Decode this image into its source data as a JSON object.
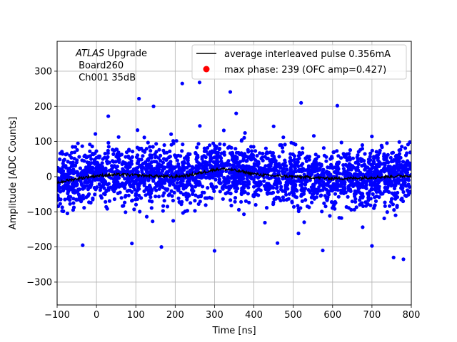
{
  "chart_data": {
    "type": "scatter",
    "xlabel": "Time [ns]",
    "ylabel": "Amplitude [ADC Counts]",
    "xlim": [
      -100,
      800
    ],
    "ylim": [
      -365,
      385
    ],
    "xticks": [
      -100,
      0,
      100,
      200,
      300,
      400,
      500,
      600,
      700,
      800
    ],
    "yticks": [
      -300,
      -200,
      -100,
      0,
      100,
      200,
      300
    ],
    "xtick_labels": [
      "−100",
      "0",
      "100",
      "200",
      "300",
      "400",
      "500",
      "600",
      "700",
      "800"
    ],
    "ytick_labels": [
      "−300",
      "−200",
      "−100",
      "0",
      "100",
      "200",
      "300"
    ],
    "grid": true,
    "legend_position": "top-right",
    "annotation": {
      "line1_italic": "ATLAS",
      "line1_rest": " Upgrade",
      "line2": " Board260",
      "line3": " Ch001 35dB"
    },
    "series": [
      {
        "name": "average interleaved pulse 0.356mA",
        "kind": "line",
        "color": "#000000",
        "x": [
          -100,
          -80,
          -60,
          -40,
          -20,
          0,
          20,
          40,
          60,
          80,
          100,
          120,
          140,
          160,
          180,
          200,
          220,
          240,
          260,
          280,
          300,
          320,
          340,
          360,
          380,
          400,
          420,
          440,
          460,
          480,
          500,
          520,
          540,
          560,
          580,
          600,
          620,
          640,
          660,
          680,
          700,
          720,
          740,
          760,
          780,
          800
        ],
        "y": [
          -18,
          -12,
          -8,
          -4,
          0,
          2,
          4,
          5,
          6,
          5,
          4,
          3,
          2,
          1,
          0,
          0,
          2,
          5,
          10,
          15,
          20,
          22,
          20,
          16,
          12,
          8,
          5,
          3,
          2,
          1,
          0,
          -1,
          -2,
          -3,
          -4,
          -5,
          -5,
          -5,
          -4,
          -3,
          -2,
          -1,
          0,
          1,
          2,
          3
        ]
      },
      {
        "name": "max phase: 239 (OFC amp=0.427)",
        "kind": "scatter",
        "color": "#ff0000"
      }
    ],
    "noise_points": {
      "color": "#0000ff",
      "x_range": [
        -100,
        800
      ],
      "core_sigma": 40,
      "outliers": [
        {
          "x": 108,
          "y": 222
        },
        {
          "x": 218,
          "y": 265
        },
        {
          "x": 262,
          "y": 268
        },
        {
          "x": 340,
          "y": 241
        },
        {
          "x": 300,
          "y": -211
        },
        {
          "x": 165,
          "y": -200
        },
        {
          "x": 90,
          "y": -190
        },
        {
          "x": -35,
          "y": -195
        },
        {
          "x": 700,
          "y": -197
        },
        {
          "x": 755,
          "y": -230
        },
        {
          "x": 780,
          "y": -235
        },
        {
          "x": 30,
          "y": 172
        },
        {
          "x": 145,
          "y": 200
        },
        {
          "x": 520,
          "y": 210
        },
        {
          "x": 612,
          "y": 202
        },
        {
          "x": 355,
          "y": 180
        },
        {
          "x": 460,
          "y": -189
        },
        {
          "x": 575,
          "y": -210
        }
      ]
    }
  }
}
